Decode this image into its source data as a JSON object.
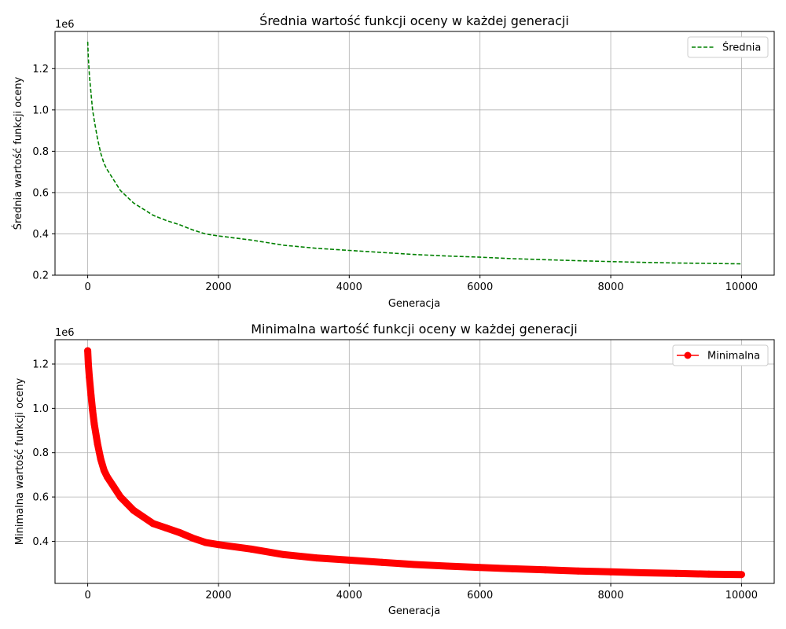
{
  "chart_data": [
    {
      "type": "line",
      "title": "Średnia wartość funkcji oceny w każdej generacji",
      "xlabel": "Generacja",
      "ylabel": "Średnia wartość funkcji oceny",
      "y_offset_label": "1e6",
      "xlim": [
        -500,
        10500
      ],
      "ylim": [
        0.2,
        1.38
      ],
      "x_ticks": [
        0,
        2000,
        4000,
        6000,
        8000,
        10000
      ],
      "x_tick_labels": [
        "0",
        "2000",
        "4000",
        "6000",
        "8000",
        "10000"
      ],
      "y_ticks": [
        0.2,
        0.4,
        0.6,
        0.8,
        1.0,
        1.2
      ],
      "y_tick_labels": [
        "0.2",
        "0.4",
        "0.6",
        "0.8",
        "1.0",
        "1.2"
      ],
      "grid": true,
      "legend": "top-right",
      "series": [
        {
          "name": "Średnia",
          "color": "#008000",
          "style": "dashed",
          "marker": "none",
          "x": [
            0,
            10,
            25,
            50,
            75,
            100,
            150,
            200,
            250,
            300,
            400,
            500,
            600,
            700,
            800,
            1000,
            1200,
            1400,
            1600,
            1800,
            2000,
            2500,
            3000,
            3500,
            4000,
            4500,
            5000,
            5500,
            6000,
            6500,
            7000,
            7500,
            8000,
            8500,
            9000,
            9500,
            10000
          ],
          "values": [
            1.33,
            1.25,
            1.17,
            1.08,
            1.0,
            0.95,
            0.86,
            0.79,
            0.74,
            0.71,
            0.66,
            0.61,
            0.58,
            0.55,
            0.53,
            0.49,
            0.465,
            0.445,
            0.42,
            0.4,
            0.39,
            0.37,
            0.345,
            0.33,
            0.32,
            0.31,
            0.3,
            0.293,
            0.287,
            0.28,
            0.275,
            0.27,
            0.266,
            0.262,
            0.259,
            0.257,
            0.255
          ]
        }
      ]
    },
    {
      "type": "line",
      "title": "Minimalna wartość funkcji oceny w każdej generacji",
      "xlabel": "Generacja",
      "ylabel": "Minimalna wartość funkcji oceny",
      "y_offset_label": "1e6",
      "xlim": [
        -500,
        10500
      ],
      "ylim": [
        0.21,
        1.31
      ],
      "x_ticks": [
        0,
        2000,
        4000,
        6000,
        8000,
        10000
      ],
      "x_tick_labels": [
        "0",
        "2000",
        "4000",
        "6000",
        "8000",
        "10000"
      ],
      "y_ticks": [
        0.4,
        0.6,
        0.8,
        1.0,
        1.2
      ],
      "y_tick_labels": [
        "0.4",
        "0.6",
        "0.8",
        "1.0",
        "1.2"
      ],
      "grid": true,
      "legend": "top-right",
      "series": [
        {
          "name": "Minimalna",
          "color": "#ff0000",
          "style": "solid",
          "marker": "circle",
          "x": [
            0,
            10,
            25,
            50,
            75,
            100,
            150,
            200,
            250,
            300,
            400,
            500,
            600,
            700,
            800,
            1000,
            1200,
            1400,
            1600,
            1800,
            2000,
            2500,
            3000,
            3500,
            4000,
            4500,
            5000,
            5500,
            6000,
            6500,
            7000,
            7500,
            8000,
            8500,
            9000,
            9500,
            10000
          ],
          "values": [
            1.26,
            1.2,
            1.14,
            1.06,
            0.99,
            0.93,
            0.84,
            0.77,
            0.72,
            0.69,
            0.645,
            0.6,
            0.57,
            0.54,
            0.52,
            0.48,
            0.46,
            0.44,
            0.415,
            0.395,
            0.385,
            0.365,
            0.34,
            0.325,
            0.315,
            0.305,
            0.295,
            0.288,
            0.282,
            0.276,
            0.271,
            0.266,
            0.262,
            0.258,
            0.255,
            0.252,
            0.25
          ]
        }
      ]
    }
  ]
}
